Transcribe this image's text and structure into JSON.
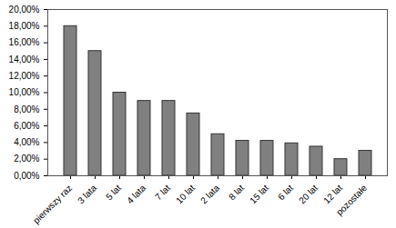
{
  "chart_data": {
    "type": "bar",
    "categories": [
      "pierwszy raz",
      "3 lata",
      "5 lat",
      "4 lata",
      "7 lat",
      "10 lat",
      "2 lata",
      "8 lat",
      "15 lat",
      "6 lat",
      "20 lat",
      "12 lat",
      "pozostałe"
    ],
    "values": [
      18,
      15,
      10,
      9,
      9,
      7.5,
      5,
      4.2,
      4.2,
      3.9,
      3.5,
      2,
      3
    ],
    "color": "#808080",
    "ylim": [
      0,
      20
    ],
    "yticks": [
      {
        "value": 0,
        "label": "0,00%"
      },
      {
        "value": 2,
        "label": "2,00%"
      },
      {
        "value": 4,
        "label": "4,00%"
      },
      {
        "value": 6,
        "label": "6,00%"
      },
      {
        "value": 8,
        "label": "8,00%"
      },
      {
        "value": 10,
        "label": "10,00%"
      },
      {
        "value": 12,
        "label": "12,00%"
      },
      {
        "value": 14,
        "label": "14,00%"
      },
      {
        "value": 16,
        "label": "16,00%"
      },
      {
        "value": 18,
        "label": "18,00%"
      },
      {
        "value": 20,
        "label": "20,00%"
      }
    ],
    "grid": false
  }
}
